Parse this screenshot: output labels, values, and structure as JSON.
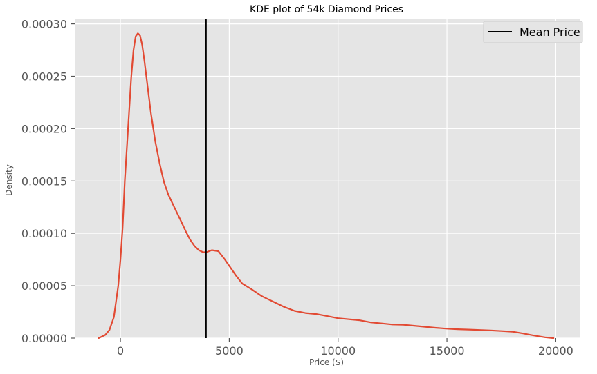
{
  "chart_data": {
    "type": "line",
    "title": "KDE plot of 54k Diamond Prices",
    "xlabel": "Price ($)",
    "ylabel": "Density",
    "xlim": [
      -2100,
      21100
    ],
    "ylim": [
      0,
      0.000305
    ],
    "x_ticks": [
      0,
      5000,
      10000,
      15000,
      20000
    ],
    "x_tick_labels": [
      "0",
      "5000",
      "10000",
      "15000",
      "20000"
    ],
    "y_ticks": [
      0,
      5e-05,
      0.0001,
      0.00015,
      0.0002,
      0.00025,
      0.0003
    ],
    "y_tick_labels": [
      "0.00000",
      "0.00005",
      "0.00010",
      "0.00015",
      "0.00020",
      "0.00025",
      "0.00030"
    ],
    "grid": true,
    "legend_position": "top-right",
    "colors": {
      "background": "#e5e5e5",
      "grid": "#ffffff",
      "kde": "#e24a33",
      "mean_line": "#000000"
    },
    "series": [
      {
        "type": "line",
        "color": "#e24a33",
        "x": [
          -1000,
          -700,
          -500,
          -300,
          -100,
          0,
          100,
          200,
          350,
          500,
          600,
          700,
          800,
          900,
          1000,
          1100,
          1250,
          1400,
          1600,
          1800,
          2000,
          2200,
          2500,
          2800,
          3000,
          3200,
          3400,
          3600,
          3800,
          3950,
          4200,
          4500,
          4800,
          5000,
          5300,
          5600,
          6000,
          6500,
          7000,
          7500,
          8000,
          8500,
          9000,
          9500,
          10000,
          10500,
          11000,
          11500,
          12000,
          12500,
          13000,
          13500,
          14000,
          14500,
          15000,
          15500,
          16000,
          16500,
          17000,
          17500,
          18000,
          18500,
          19000,
          19500,
          19900
        ],
        "y": [
          0,
          3e-06,
          8e-06,
          2e-05,
          5e-05,
          7.5e-05,
          0.000105,
          0.00015,
          0.0002,
          0.00025,
          0.000275,
          0.000288,
          0.000291,
          0.000289,
          0.00028,
          0.000265,
          0.00024,
          0.000215,
          0.000188,
          0.000167,
          0.000149,
          0.000137,
          0.000124,
          0.000111,
          0.000102,
          9.4e-05,
          8.8e-05,
          8.4e-05,
          8.2e-05,
          8.2e-05,
          8.4e-05,
          8.3e-05,
          7.5e-05,
          6.9e-05,
          6e-05,
          5.2e-05,
          4.7e-05,
          4e-05,
          3.5e-05,
          3e-05,
          2.6e-05,
          2.4e-05,
          2.3e-05,
          2.1e-05,
          1.9e-05,
          1.8e-05,
          1.7e-05,
          1.5e-05,
          1.4e-05,
          1.3e-05,
          1.28e-05,
          1.18e-05,
          1.08e-05,
          9.8e-06,
          9e-06,
          8.5e-06,
          8.2e-06,
          7.8e-06,
          7.4e-06,
          6.8e-06,
          6.2e-06,
          4.5e-06,
          2.5e-06,
          8e-07,
          0
        ]
      }
    ],
    "mean_price": 3933,
    "legend": [
      {
        "label": "Mean Price",
        "color": "#000000"
      }
    ]
  }
}
